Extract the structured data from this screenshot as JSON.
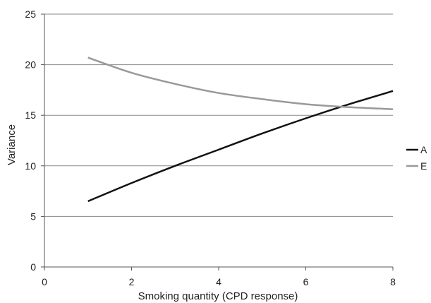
{
  "chart_data": {
    "type": "line",
    "title": "",
    "xlabel": "Smoking quantity (CPD response)",
    "ylabel": "Variance",
    "xlim": [
      0,
      8
    ],
    "ylim": [
      0,
      25
    ],
    "x_ticks": [
      "0",
      "2",
      "4",
      "6",
      "8"
    ],
    "y_ticks": [
      "0",
      "5",
      "10",
      "15",
      "20",
      "25"
    ],
    "grid": "horizontal",
    "legend_position": "right",
    "series": [
      {
        "name": "A",
        "color": "#111111",
        "x": [
          1,
          2,
          3,
          4,
          5,
          6,
          7,
          8
        ],
        "y": [
          6.5,
          8.3,
          10.0,
          11.6,
          13.2,
          14.7,
          16.1,
          17.4
        ]
      },
      {
        "name": "E",
        "color": "#999999",
        "x": [
          1,
          2,
          3,
          4,
          5,
          6,
          7,
          8
        ],
        "y": [
          20.7,
          19.2,
          18.1,
          17.2,
          16.6,
          16.1,
          15.8,
          15.6
        ]
      }
    ]
  }
}
